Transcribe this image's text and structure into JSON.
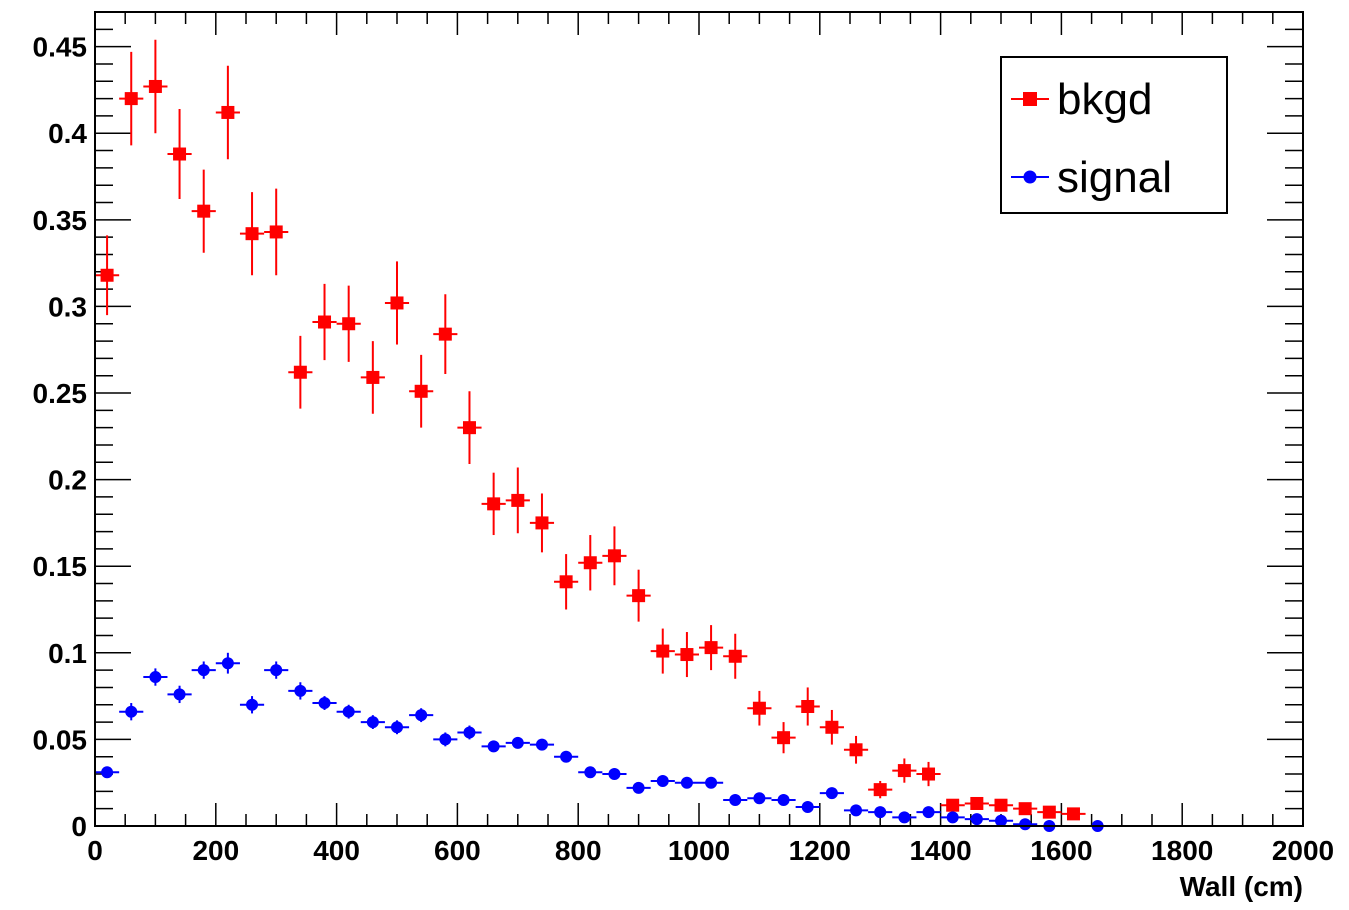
{
  "chart_data": {
    "type": "scatter",
    "title": "",
    "xlabel": "Wall (cm)",
    "ylabel": "",
    "xlim": [
      0,
      2000
    ],
    "ylim": [
      0,
      0.47
    ],
    "xticks": [
      0,
      200,
      400,
      600,
      800,
      1000,
      1200,
      1400,
      1600,
      1800,
      2000
    ],
    "yticks": [
      0,
      0.05,
      0.1,
      0.15,
      0.2,
      0.25,
      0.3,
      0.35,
      0.4,
      0.45
    ],
    "xtick_labels": [
      "0",
      "200",
      "400",
      "600",
      "800",
      "1000",
      "1200",
      "1400",
      "1600",
      "1800",
      "2000"
    ],
    "ytick_labels": [
      "0",
      "0.05",
      "0.1",
      "0.15",
      "0.2",
      "0.25",
      "0.3",
      "0.35",
      "0.4",
      "0.45"
    ],
    "bin_width": 40,
    "legend_position": "top-right",
    "grid": false,
    "series": [
      {
        "name": "bkgd",
        "color": "#ff0000",
        "marker": "square",
        "x": [
          20,
          60,
          100,
          140,
          180,
          220,
          260,
          300,
          340,
          380,
          420,
          460,
          500,
          540,
          580,
          620,
          660,
          700,
          740,
          780,
          820,
          860,
          900,
          940,
          980,
          1020,
          1060,
          1100,
          1140,
          1180,
          1220,
          1260,
          1300,
          1340,
          1380,
          1420,
          1460,
          1500,
          1540,
          1580,
          1620
        ],
        "y": [
          0.318,
          0.42,
          0.427,
          0.388,
          0.355,
          0.412,
          0.342,
          0.343,
          0.262,
          0.291,
          0.29,
          0.259,
          0.302,
          0.251,
          0.284,
          0.23,
          0.186,
          0.188,
          0.175,
          0.141,
          0.152,
          0.156,
          0.133,
          0.101,
          0.099,
          0.103,
          0.098,
          0.068,
          0.051,
          0.069,
          0.057,
          0.044,
          0.021,
          0.032,
          0.03,
          0.012,
          0.013,
          0.012,
          0.01,
          0.008,
          0.007
        ],
        "err": [
          0.023,
          0.027,
          0.027,
          0.026,
          0.024,
          0.027,
          0.024,
          0.025,
          0.021,
          0.022,
          0.022,
          0.021,
          0.024,
          0.021,
          0.023,
          0.021,
          0.018,
          0.019,
          0.017,
          0.016,
          0.016,
          0.017,
          0.015,
          0.013,
          0.013,
          0.013,
          0.013,
          0.01,
          0.009,
          0.011,
          0.01,
          0.008,
          0.005,
          0.007,
          0.007,
          0.003,
          0.003,
          0.003,
          0.003,
          0.002,
          0.002
        ]
      },
      {
        "name": "signal",
        "color": "#0000ff",
        "marker": "circle",
        "x": [
          20,
          60,
          100,
          140,
          180,
          220,
          260,
          300,
          340,
          380,
          420,
          460,
          500,
          540,
          580,
          620,
          660,
          700,
          740,
          780,
          820,
          860,
          900,
          940,
          980,
          1020,
          1060,
          1100,
          1140,
          1180,
          1220,
          1260,
          1300,
          1340,
          1380,
          1420,
          1460,
          1500,
          1540,
          1580,
          1660
        ],
        "y": [
          0.031,
          0.066,
          0.086,
          0.076,
          0.09,
          0.094,
          0.07,
          0.09,
          0.078,
          0.071,
          0.066,
          0.06,
          0.057,
          0.064,
          0.05,
          0.054,
          0.046,
          0.048,
          0.047,
          0.04,
          0.031,
          0.03,
          0.022,
          0.026,
          0.025,
          0.025,
          0.015,
          0.016,
          0.015,
          0.011,
          0.019,
          0.009,
          0.008,
          0.005,
          0.008,
          0.005,
          0.004,
          0.003,
          0.001,
          0.0,
          0.0
        ],
        "err": [
          0.003,
          0.005,
          0.005,
          0.005,
          0.005,
          0.006,
          0.005,
          0.005,
          0.005,
          0.004,
          0.004,
          0.004,
          0.004,
          0.004,
          0.004,
          0.004,
          0.003,
          0.003,
          0.003,
          0.003,
          0.003,
          0.003,
          0.002,
          0.002,
          0.002,
          0.002,
          0.002,
          0.002,
          0.002,
          0.002,
          0.002,
          0.001,
          0.001,
          0.001,
          0.001,
          0.001,
          0.001,
          0.001,
          0.001,
          0.0,
          0.0
        ]
      }
    ]
  }
}
